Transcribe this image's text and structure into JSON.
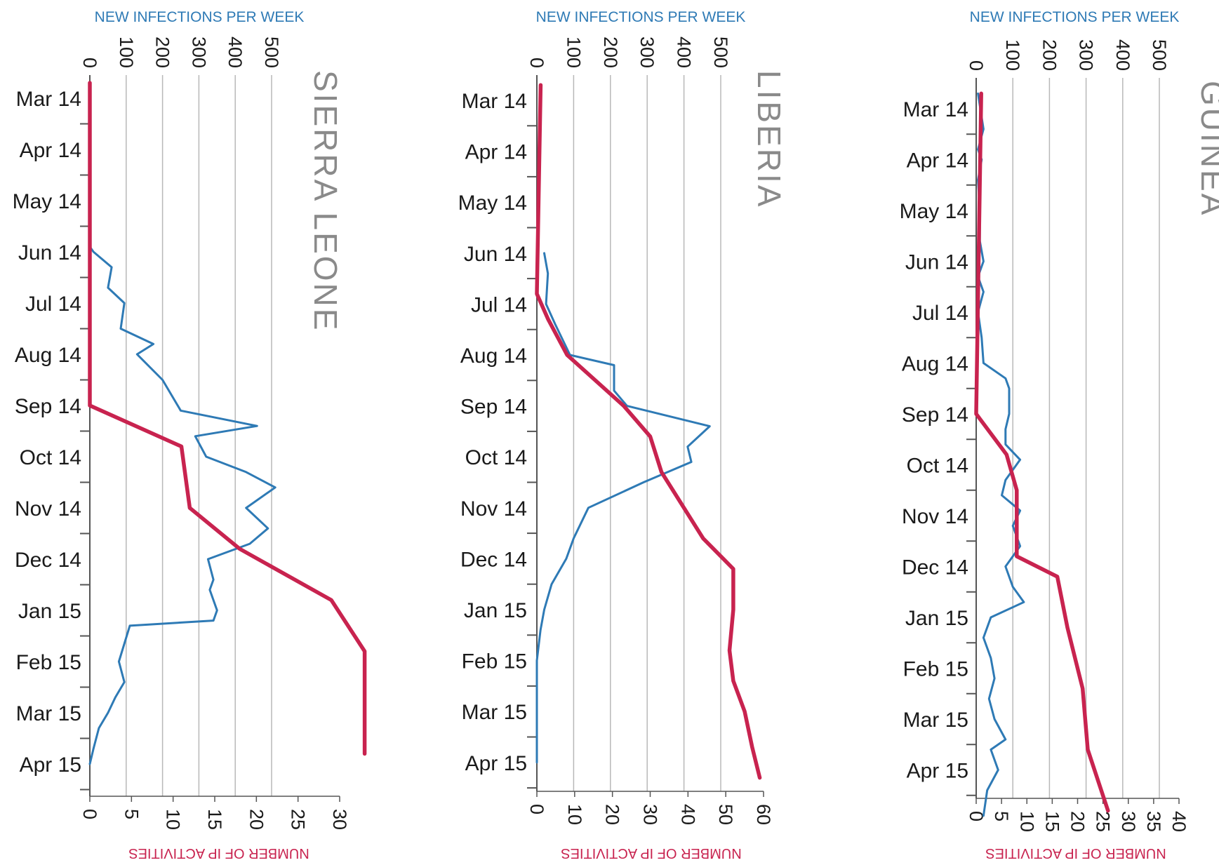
{
  "colors": {
    "infections": "#2e7ab5",
    "activities": "#c8234f",
    "grid": "#b8b8b8",
    "axis": "#555555",
    "title": "#8a8a8a",
    "text": "#1a1a1a"
  },
  "chart_data": [
    {
      "type": "line",
      "title": "SIERRA LEONE",
      "top_axis_label": "NEW INFECTIONS PER WEEK",
      "bottom_axis_label": "NUMBER OF IP ACTIVITIES",
      "top_ticks": [
        "0",
        "100",
        "200",
        "300",
        "400",
        "500"
      ],
      "top_range": [
        0,
        500
      ],
      "bottom_ticks": [
        "0",
        "5",
        "10",
        "15",
        "20",
        "25",
        "30"
      ],
      "bottom_range": [
        0,
        30
      ],
      "months": [
        "Mar 14",
        "Apr 14",
        "May 14",
        "Jun 14",
        "Jul 14",
        "Aug 14",
        "Sep 14",
        "Oct 14",
        "Nov 14",
        "Dec 14",
        "Jan 15",
        "Feb 15",
        "Mar 15",
        "Apr 15"
      ],
      "grid": true,
      "series": [
        {
          "key": "infections",
          "axis": "top",
          "points": [
            [
              2.9,
              0
            ],
            [
              3.0,
              10
            ],
            [
              3.3,
              60
            ],
            [
              3.7,
              50
            ],
            [
              4.0,
              95
            ],
            [
              4.5,
              85
            ],
            [
              4.8,
              175
            ],
            [
              5.0,
              130
            ],
            [
              5.5,
              200
            ],
            [
              6.1,
              250
            ],
            [
              6.4,
              460
            ],
            [
              6.6,
              290
            ],
            [
              7.0,
              320
            ],
            [
              7.3,
              430
            ],
            [
              7.6,
              510
            ],
            [
              8.0,
              430
            ],
            [
              8.4,
              490
            ],
            [
              8.7,
              440
            ],
            [
              9.0,
              325
            ],
            [
              9.4,
              340
            ],
            [
              9.6,
              330
            ],
            [
              10.0,
              350
            ],
            [
              10.2,
              340
            ],
            [
              10.3,
              110
            ],
            [
              11.0,
              80
            ],
            [
              11.4,
              95
            ],
            [
              11.7,
              70
            ],
            [
              12.0,
              50
            ],
            [
              12.3,
              25
            ],
            [
              12.7,
              10
            ],
            [
              13.0,
              0
            ]
          ]
        },
        {
          "key": "activities",
          "axis": "bottom",
          "points": [
            [
              -0.3,
              0
            ],
            [
              6.0,
              0
            ],
            [
              6.8,
              11
            ],
            [
              8.0,
              12
            ],
            [
              8.8,
              18
            ],
            [
              9.8,
              29
            ],
            [
              10.8,
              33
            ],
            [
              11.5,
              33
            ],
            [
              12.8,
              33
            ]
          ]
        }
      ]
    },
    {
      "type": "line",
      "title": "LIBERIA",
      "top_axis_label": "NEW INFECTIONS PER WEEK",
      "bottom_axis_label": "NUMBER OF IP ACTIVITIES",
      "top_ticks": [
        "0",
        "100",
        "200",
        "300",
        "400",
        "500"
      ],
      "top_range": [
        0,
        500
      ],
      "bottom_ticks": [
        "0",
        "10",
        "20",
        "30",
        "40",
        "50",
        "60"
      ],
      "bottom_range": [
        0,
        60
      ],
      "months": [
        "Mar 14",
        "Apr 14",
        "May 14",
        "Jun 14",
        "Jul 14",
        "Aug 14",
        "Sep 14",
        "Oct 14",
        "Nov 14",
        "Dec 14",
        "Jan 15",
        "Feb 15",
        "Mar 15",
        "Apr 15"
      ],
      "grid": true,
      "series": [
        {
          "key": "infections",
          "axis": "top",
          "points": [
            [
              3.0,
              20
            ],
            [
              3.4,
              30
            ],
            [
              4.0,
              25
            ],
            [
              4.4,
              50
            ],
            [
              5.0,
              90
            ],
            [
              5.2,
              210
            ],
            [
              5.7,
              210
            ],
            [
              6.0,
              245
            ],
            [
              6.4,
              470
            ],
            [
              6.8,
              410
            ],
            [
              7.1,
              420
            ],
            [
              7.5,
              290
            ],
            [
              8.0,
              140
            ],
            [
              8.6,
              100
            ],
            [
              9.0,
              80
            ],
            [
              9.5,
              40
            ],
            [
              10.0,
              20
            ],
            [
              10.4,
              10
            ],
            [
              11.0,
              0
            ],
            [
              13.0,
              0
            ]
          ]
        },
        {
          "key": "activities",
          "axis": "bottom",
          "points": [
            [
              -0.3,
              1
            ],
            [
              3.8,
              0
            ],
            [
              4.3,
              3
            ],
            [
              5.0,
              8
            ],
            [
              6.0,
              23
            ],
            [
              6.6,
              30
            ],
            [
              7.3,
              33
            ],
            [
              8.6,
              44
            ],
            [
              9.2,
              52
            ],
            [
              10.0,
              52
            ],
            [
              10.8,
              51
            ],
            [
              11.4,
              52
            ],
            [
              12.0,
              55
            ],
            [
              12.7,
              57
            ],
            [
              13.3,
              59
            ]
          ]
        }
      ]
    },
    {
      "type": "line",
      "title": "GUINEA",
      "top_axis_label": "NEW INFECTIONS PER WEEK",
      "bottom_axis_label": "NUMBER OF IP ACTIVITIES",
      "top_ticks": [
        "0",
        "100",
        "200",
        "300",
        "400",
        "500"
      ],
      "top_range": [
        0,
        500
      ],
      "bottom_ticks": [
        "0",
        "5",
        "10",
        "15",
        "20",
        "25",
        "30",
        "35",
        "40"
      ],
      "bottom_range": [
        0,
        40
      ],
      "months": [
        "Mar 14",
        "Apr 14",
        "May 14",
        "Jun 14",
        "Jul 14",
        "Aug 14",
        "Sep 14",
        "Oct 14",
        "Nov 14",
        "Dec 14",
        "Jan 15",
        "Feb 15",
        "Mar 15",
        "Apr 15"
      ],
      "grid": true,
      "series": [
        {
          "key": "infections",
          "axis": "top",
          "points": [
            [
              -0.3,
              5
            ],
            [
              0.4,
              20
            ],
            [
              0.8,
              5
            ],
            [
              1.0,
              15
            ],
            [
              1.4,
              5
            ],
            [
              2.0,
              10
            ],
            [
              2.6,
              10
            ],
            [
              3.0,
              20
            ],
            [
              3.3,
              5
            ],
            [
              3.6,
              20
            ],
            [
              4.0,
              5
            ],
            [
              4.5,
              15
            ],
            [
              5.0,
              20
            ],
            [
              5.3,
              80
            ],
            [
              5.5,
              90
            ],
            [
              6.0,
              90
            ],
            [
              6.3,
              80
            ],
            [
              6.6,
              80
            ],
            [
              6.9,
              120
            ],
            [
              7.3,
              80
            ],
            [
              7.6,
              70
            ],
            [
              7.9,
              120
            ],
            [
              8.2,
              100
            ],
            [
              8.6,
              120
            ],
            [
              9.0,
              80
            ],
            [
              9.4,
              100
            ],
            [
              9.7,
              130
            ],
            [
              10.0,
              40
            ],
            [
              10.4,
              20
            ],
            [
              10.8,
              40
            ],
            [
              11.2,
              50
            ],
            [
              11.6,
              35
            ],
            [
              12.0,
              50
            ],
            [
              12.4,
              80
            ],
            [
              12.6,
              40
            ],
            [
              13.0,
              60
            ],
            [
              13.4,
              30
            ],
            [
              13.9,
              20
            ]
          ]
        },
        {
          "key": "activities",
          "axis": "bottom",
          "points": [
            [
              -0.3,
              1
            ],
            [
              6.0,
              0
            ],
            [
              6.8,
              6
            ],
            [
              7.5,
              8
            ],
            [
              8.3,
              8
            ],
            [
              8.8,
              8
            ],
            [
              9.2,
              16
            ],
            [
              10.2,
              18
            ],
            [
              11.4,
              21
            ],
            [
              12.6,
              22
            ],
            [
              13.8,
              26
            ]
          ]
        }
      ]
    }
  ]
}
